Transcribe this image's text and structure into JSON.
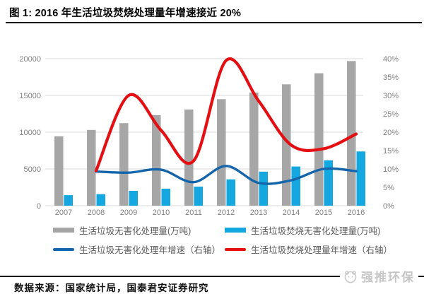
{
  "figure": {
    "title": "图 1:  2016 年生活垃圾焚烧处理量年增速接近 20%"
  },
  "chart_data": {
    "type": "bar",
    "subtype": "combo-bar-line-dual-axis",
    "categories": [
      "2007",
      "2008",
      "2009",
      "2010",
      "2011",
      "2012",
      "2013",
      "2014",
      "2015",
      "2016"
    ],
    "series": [
      {
        "name": "生活垃圾无害化处理量(万吨)",
        "type": "bar",
        "axis": "left",
        "color": "#a6a6a6",
        "values": [
          9438,
          10307,
          11232,
          12318,
          13090,
          14490,
          15394,
          16510,
          18013,
          19674
        ]
      },
      {
        "name": "生活垃圾焚烧无害化处理量(万吨)",
        "type": "bar",
        "axis": "left",
        "color": "#14a7e0",
        "values": [
          1435,
          1570,
          2022,
          2317,
          2599,
          3584,
          4634,
          5330,
          6176,
          7378
        ]
      },
      {
        "name": "生活垃圾无害化处理年增速（右轴）",
        "type": "line",
        "axis": "right",
        "color": "#1565ab",
        "values": [
          null,
          9.3,
          9.0,
          9.8,
          6.4,
          10.8,
          6.2,
          6.9,
          10.0,
          9.4
        ]
      },
      {
        "name": "生活垃圾焚烧处理量年增速（右轴）",
        "type": "line",
        "axis": "right",
        "color": "#e30f13",
        "values": [
          null,
          9.5,
          30.0,
          20.5,
          12.2,
          39.5,
          28.5,
          16.5,
          15.5,
          19.5
        ]
      }
    ],
    "left_axis": {
      "min": 0,
      "max": 20000,
      "tick_labels": [
        "0",
        "5000",
        "10000",
        "15000",
        "20000"
      ]
    },
    "right_axis": {
      "min": 0,
      "max": 40,
      "tick_labels": [
        "0%",
        "5%",
        "10%",
        "15%",
        "20%",
        "25%",
        "30%",
        "35%",
        "40%"
      ]
    },
    "grid": true,
    "legend_position": "bottom",
    "colors": {
      "gridline": "#d9d9d9",
      "axis_text": "#808080"
    }
  },
  "source": {
    "text": "数据来源：国家统计局，国泰君安证券研究"
  },
  "logo": {
    "text": "强推环保"
  }
}
